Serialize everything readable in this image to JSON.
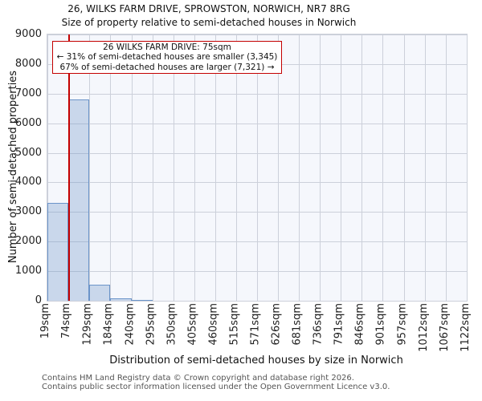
{
  "header": {
    "title": "26, WILKS FARM DRIVE, SPROWSTON, NORWICH, NR7 8RG",
    "subtitle": "Size of property relative to semi-detached houses in Norwich"
  },
  "annotation": {
    "line1": "26 WILKS FARM DRIVE: 75sqm",
    "line2": "← 31% of semi-detached houses are smaller (3,345)",
    "line3": "67% of semi-detached houses are larger (7,321) →"
  },
  "chart_data": {
    "type": "bar",
    "title": "26, WILKS FARM DRIVE, SPROWSTON, NORWICH, NR7 8RG",
    "subtitle": "Size of property relative to semi-detached houses in Norwich",
    "xlabel": "Distribution of semi-detached houses by size in Norwich",
    "ylabel": "Number of semi-detached properties",
    "ylim": [
      0,
      9000
    ],
    "ytick_step": 1000,
    "grid": true,
    "legend": false,
    "bin_edges_sqm": [
      19,
      74,
      129,
      184,
      240,
      295,
      350,
      405,
      460,
      515,
      571,
      626,
      681,
      736,
      791,
      846,
      901,
      957,
      1012,
      1067,
      1122
    ],
    "x_tick_labels": [
      "19sqm",
      "74sqm",
      "129sqm",
      "184sqm",
      "240sqm",
      "295sqm",
      "350sqm",
      "405sqm",
      "460sqm",
      "515sqm",
      "571sqm",
      "626sqm",
      "681sqm",
      "736sqm",
      "791sqm",
      "846sqm",
      "901sqm",
      "957sqm",
      "1012sqm",
      "1067sqm",
      "1122sqm"
    ],
    "values": [
      3300,
      6800,
      540,
      90,
      20,
      0,
      0,
      0,
      0,
      0,
      0,
      0,
      0,
      0,
      0,
      0,
      0,
      0,
      0,
      0
    ],
    "marker_value_sqm": 75,
    "smaller_count": 3345,
    "smaller_pct": 31,
    "larger_count": 7321,
    "larger_pct": 67
  },
  "colors": {
    "bar_fill": "rgba(110,150,200,0.32)",
    "bar_edge": "#6b94c9",
    "marker_red": "#c40000",
    "grid": "#ccd0da",
    "plot_bg": "#f5f7fc",
    "footer_text": "#555555"
  },
  "footer": {
    "line1": "Contains HM Land Registry data © Crown copyright and database right 2026.",
    "line2": "Contains public sector information licensed under the Open Government Licence v3.0."
  }
}
